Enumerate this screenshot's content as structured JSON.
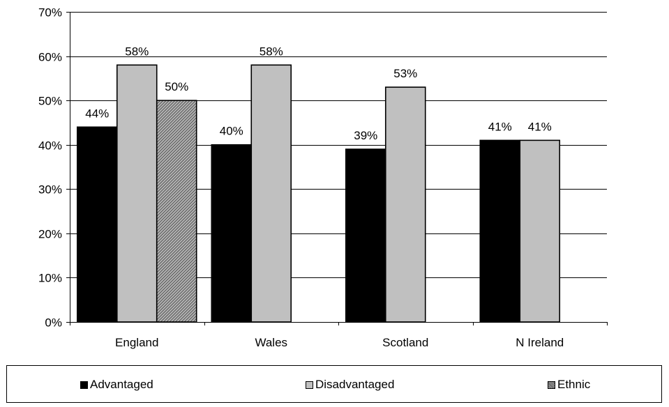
{
  "chart_data": {
    "type": "bar",
    "categories": [
      "England",
      "Wales",
      "Scotland",
      "N Ireland"
    ],
    "series": [
      {
        "name": "Advantaged",
        "values": [
          44,
          40,
          39,
          41
        ],
        "labels": [
          "44%",
          "40%",
          "39%",
          "41%"
        ],
        "color": "#000000"
      },
      {
        "name": "Disadvantaged",
        "values": [
          58,
          58,
          53,
          41
        ],
        "labels": [
          "58%",
          "58%",
          "53%",
          "41%"
        ],
        "color": "#c0c0c0"
      },
      {
        "name": "Ethnic",
        "values": [
          50,
          null,
          null,
          null
        ],
        "labels": [
          "50%",
          null,
          null,
          null
        ],
        "color": "#808080"
      }
    ],
    "ylim": [
      0,
      70
    ],
    "yticks": [
      0,
      10,
      20,
      30,
      40,
      50,
      60,
      70
    ],
    "ytick_labels": [
      "0%",
      "10%",
      "20%",
      "30%",
      "40%",
      "50%",
      "60%",
      "70%"
    ],
    "title": "",
    "xlabel": "",
    "ylabel": "",
    "grid": true,
    "legend_position": "bottom"
  },
  "legend": {
    "items": [
      {
        "label": "Advantaged",
        "swatch": "solid-black"
      },
      {
        "label": "Disadvantaged",
        "swatch": "light-gray"
      },
      {
        "label": "Ethnic",
        "swatch": "hatched-gray"
      }
    ]
  }
}
